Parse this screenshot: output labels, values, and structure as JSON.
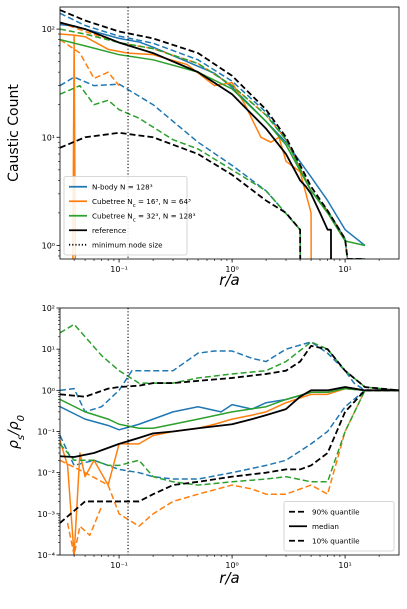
{
  "colors": {
    "nbody": "#1f77b4",
    "cube16": "#ff7f0e",
    "cube32": "#2ca02c",
    "reference": "#000000"
  },
  "chart_data": [
    {
      "type": "line",
      "xscale": "log",
      "yscale": "log",
      "xlim": [
        0.03,
        30
      ],
      "ylim": [
        0.75,
        160
      ],
      "xlabel": "r/a",
      "ylabel": "Caustic Count",
      "xticks": [
        {
          "v": 0.1,
          "label": "10⁻¹"
        },
        {
          "v": 1,
          "label": "10⁰"
        },
        {
          "v": 10,
          "label": "10¹"
        }
      ],
      "yticks": [
        {
          "v": 1,
          "label": "10⁰"
        },
        {
          "v": 10,
          "label": "10¹"
        },
        {
          "v": 100,
          "label": "10²"
        }
      ],
      "vline": {
        "x": 0.12,
        "style": "dotted"
      },
      "legend": {
        "position": "lower-left",
        "entries": [
          {
            "label": "N-body N = 128³",
            "color": "nbody",
            "style": "solid"
          },
          {
            "label": "Cubetree N_c = 16³, N = 64³",
            "color": "cube16",
            "style": "solid"
          },
          {
            "label": "Cubetree N_c = 32³, N = 128³",
            "color": "cube32",
            "style": "solid"
          },
          {
            "label": "reference",
            "color": "reference",
            "style": "solid"
          },
          {
            "label": "minimum node size",
            "color": "reference",
            "style": "dotted"
          }
        ]
      },
      "series": [
        {
          "color": "nbody",
          "style": "dashed",
          "x": [
            0.03,
            0.05,
            0.1,
            0.2,
            0.5,
            1,
            2,
            3,
            5,
            7,
            10,
            10.5,
            15
          ],
          "y": [
            140,
            108,
            86,
            74,
            52,
            33,
            17,
            9.5,
            3.2,
            2.1,
            1.15,
            0.75,
            0.75
          ]
        },
        {
          "color": "nbody",
          "style": "solid",
          "x": [
            0.03,
            0.04,
            0.06,
            0.1,
            0.15,
            0.2,
            0.4,
            0.7,
            1,
            2,
            3,
            5,
            7,
            10,
            15
          ],
          "y": [
            110,
            107,
            95,
            82,
            76,
            68,
            50,
            39,
            29,
            14,
            9,
            4.3,
            2.6,
            1.4,
            1
          ]
        },
        {
          "color": "nbody",
          "style": "dashed",
          "x": [
            0.03,
            0.04,
            0.06,
            0.1,
            0.2,
            0.5,
            1,
            2,
            4,
            4.01
          ],
          "y": [
            30,
            36,
            30,
            31,
            20,
            9,
            5.5,
            3.2,
            1.4,
            0.75
          ]
        },
        {
          "color": "cube16",
          "style": "dashed",
          "x": [
            0.03,
            0.05,
            0.1,
            0.2,
            0.5,
            1,
            2,
            3,
            5,
            7,
            10,
            10.5,
            15
          ],
          "y": [
            115,
            95,
            75,
            66,
            48,
            30,
            16,
            9.5,
            3.2,
            2.1,
            1.15,
            0.75,
            0.75
          ]
        },
        {
          "color": "cube16",
          "style": "solid",
          "x": [
            0.03,
            0.04,
            0.05,
            0.08,
            0.12,
            0.2,
            0.4,
            0.7,
            1,
            1.3,
            1.8,
            2.2,
            2.6,
            3,
            4,
            5,
            5.01
          ],
          "y": [
            90,
            88,
            85,
            65,
            60,
            58,
            47,
            30,
            32,
            20,
            10,
            9,
            10,
            6,
            4.8,
            2,
            0.75
          ]
        },
        {
          "color": "cube16",
          "style": "solid",
          "x": [
            0.039,
            0.04,
            0.041
          ],
          "y": [
            0.75,
            88,
            0.75
          ]
        },
        {
          "color": "cube16",
          "style": "dashed",
          "x": [
            0.03,
            0.045,
            0.06,
            0.08,
            0.1
          ],
          "y": [
            80,
            60,
            35,
            40,
            30
          ]
        },
        {
          "color": "cube32",
          "style": "dashed",
          "x": [
            0.03,
            0.05,
            0.1,
            0.2,
            0.5,
            1,
            2,
            3,
            5,
            7,
            10,
            10.5,
            15
          ],
          "y": [
            100,
            90,
            75,
            66,
            48,
            30,
            16,
            9.5,
            3.2,
            2.1,
            1.15,
            0.75,
            0.75
          ]
        },
        {
          "color": "cube32",
          "style": "solid",
          "x": [
            0.03,
            0.05,
            0.1,
            0.2,
            0.5,
            1,
            2,
            3,
            5,
            7,
            10,
            15
          ],
          "y": [
            80,
            70,
            58,
            52,
            40,
            28,
            14,
            8.5,
            3.2,
            2,
            1.1,
            1
          ]
        },
        {
          "color": "cube32",
          "style": "dashed",
          "x": [
            0.03,
            0.045,
            0.06,
            0.08,
            0.1,
            0.15,
            0.3,
            0.5,
            1,
            2,
            4,
            4.01
          ],
          "y": [
            25,
            30,
            20,
            22,
            18,
            15,
            9.5,
            7.8,
            5,
            3.2,
            1.4,
            0.75
          ]
        },
        {
          "color": "reference",
          "style": "dashed",
          "x": [
            0.03,
            0.05,
            0.1,
            0.2,
            0.5,
            1,
            2,
            3,
            5,
            7,
            10,
            10.5,
            15
          ],
          "y": [
            150,
            120,
            95,
            82,
            60,
            37,
            18,
            10,
            3.5,
            2.1,
            1.15,
            0.75,
            0.75
          ]
        },
        {
          "color": "reference",
          "style": "solid",
          "x": [
            0.03,
            0.05,
            0.1,
            0.2,
            0.5,
            1,
            2,
            3,
            4,
            4.5,
            5,
            6,
            7,
            7.5,
            7.51
          ],
          "y": [
            115,
            100,
            75,
            60,
            40,
            25,
            12,
            7,
            4,
            3.5,
            3,
            2,
            1.4,
            1.4,
            0.75
          ]
        },
        {
          "color": "reference",
          "style": "dashed",
          "x": [
            0.03,
            0.05,
            0.1,
            0.2,
            0.5,
            1,
            2,
            3,
            4,
            4.01
          ],
          "y": [
            8,
            10,
            11,
            10,
            7,
            4.5,
            2.6,
            2,
            1.4,
            0.75
          ]
        }
      ]
    },
    {
      "type": "line",
      "xscale": "log",
      "yscale": "log",
      "xlim": [
        0.03,
        30
      ],
      "ylim": [
        0.0001,
        100
      ],
      "xlabel": "r/a",
      "ylabel": "ρ_s/ρ_0",
      "xticks": [
        {
          "v": 0.1,
          "label": "10⁻¹"
        },
        {
          "v": 1,
          "label": "10⁰"
        },
        {
          "v": 10,
          "label": "10¹"
        }
      ],
      "yticks": [
        {
          "v": 0.0001,
          "label": "10⁻⁴"
        },
        {
          "v": 0.001,
          "label": "10⁻³"
        },
        {
          "v": 0.01,
          "label": "10⁻²"
        },
        {
          "v": 0.1,
          "label": "10⁻¹"
        },
        {
          "v": 1,
          "label": "10⁰"
        },
        {
          "v": 10,
          "label": "10¹"
        },
        {
          "v": 100,
          "label": "10²"
        }
      ],
      "vline": {
        "x": 0.12,
        "style": "dotted"
      },
      "legend": {
        "position": "lower-right",
        "entries": [
          {
            "label": "90% quantile",
            "color": "reference",
            "style": "dashed"
          },
          {
            "label": "median",
            "color": "reference",
            "style": "solid"
          },
          {
            "label": "10% quantile",
            "color": "reference",
            "style": "dashed"
          }
        ]
      },
      "series": [
        {
          "color": "nbody",
          "style": "dashed",
          "x": [
            0.03,
            0.04,
            0.05,
            0.07,
            0.1,
            0.13,
            0.2,
            0.3,
            0.5,
            0.7,
            1,
            1.5,
            2,
            3,
            5,
            7,
            10,
            12,
            15,
            20,
            30
          ],
          "y": [
            1,
            1.1,
            0.3,
            0.4,
            1,
            3,
            3,
            3,
            8,
            9,
            9,
            6,
            5,
            10,
            15,
            8,
            3,
            1.5,
            1,
            1,
            1
          ]
        },
        {
          "color": "nbody",
          "style": "solid",
          "x": [
            0.03,
            0.05,
            0.08,
            0.1,
            0.15,
            0.2,
            0.3,
            0.5,
            0.8,
            1,
            1.5,
            2,
            3,
            5,
            7,
            10,
            15,
            30
          ],
          "y": [
            0.4,
            0.2,
            0.14,
            0.11,
            0.15,
            0.2,
            0.3,
            0.4,
            0.3,
            0.45,
            0.35,
            0.5,
            0.6,
            0.9,
            0.9,
            1.1,
            1,
            1
          ]
        },
        {
          "color": "nbody",
          "style": "dashed",
          "x": [
            0.03,
            0.04,
            0.06,
            0.1,
            0.15,
            0.2,
            0.3,
            0.5,
            1,
            2,
            3,
            5,
            7,
            10,
            15,
            30
          ],
          "y": [
            0.08,
            0.015,
            0.02,
            0.012,
            0.01,
            0.008,
            0.007,
            0.007,
            0.01,
            0.015,
            0.02,
            0.05,
            0.1,
            0.4,
            1,
            1
          ]
        },
        {
          "color": "cube16",
          "style": "dashed",
          "x": [
            0.03,
            0.05,
            0.08,
            0.1,
            0.15,
            0.2,
            0.3,
            0.5,
            1,
            1.5,
            2,
            3,
            5,
            7,
            10,
            15,
            30
          ],
          "y": [
            0.02,
            0.01,
            0.005,
            0.001,
            0.0005,
            0.001,
            0.002,
            0.003,
            0.005,
            0.004,
            0.003,
            0.003,
            0.005,
            0.003,
            0.1,
            1,
            1
          ]
        },
        {
          "color": "cube16",
          "style": "dashed",
          "x": [
            0.035,
            0.04,
            0.045,
            0.055,
            0.07
          ],
          "y": [
            0.0006,
            0.0001,
            0.0005,
            0.0003,
            0.0015
          ]
        },
        {
          "color": "cube16",
          "style": "solid",
          "x": [
            0.03,
            0.035,
            0.04,
            0.045,
            0.05,
            0.06,
            0.08,
            0.1,
            0.15,
            0.2,
            0.3,
            0.5,
            0.7,
            1,
            1.5,
            2,
            3,
            5,
            7,
            10,
            15,
            30
          ],
          "y": [
            0.06,
            0.015,
            0.0001,
            0.03,
            0.008,
            0.02,
            0.005,
            0.05,
            0.05,
            0.08,
            0.1,
            0.12,
            0.15,
            0.2,
            0.25,
            0.3,
            0.5,
            0.8,
            0.8,
            1.1,
            1,
            1
          ]
        },
        {
          "color": "cube32",
          "style": "dashed",
          "x": [
            0.03,
            0.04,
            0.05,
            0.07,
            0.1,
            0.15,
            0.2,
            0.3,
            0.5,
            1,
            2,
            3,
            5,
            7,
            10,
            15,
            30
          ],
          "y": [
            25,
            40,
            20,
            7,
            3,
            1.5,
            1.5,
            1.5,
            2,
            2.5,
            3,
            5,
            15,
            10,
            3,
            1.2,
            1
          ]
        },
        {
          "color": "cube32",
          "style": "solid",
          "x": [
            0.03,
            0.05,
            0.08,
            0.1,
            0.15,
            0.2,
            0.3,
            0.5,
            1,
            2,
            3,
            5,
            7,
            10,
            15,
            30
          ],
          "y": [
            0.6,
            0.3,
            0.2,
            0.15,
            0.12,
            0.12,
            0.15,
            0.2,
            0.3,
            0.4,
            0.6,
            0.9,
            0.9,
            1.1,
            1,
            1
          ]
        },
        {
          "color": "cube32",
          "style": "dashed",
          "x": [
            0.03,
            0.04,
            0.06,
            0.08,
            0.1,
            0.15,
            0.2,
            0.3,
            0.5,
            1,
            2,
            3,
            5,
            7,
            10,
            15,
            30
          ],
          "y": [
            0.05,
            0.02,
            0.02,
            0.015,
            0.015,
            0.02,
            0.008,
            0.006,
            0.005,
            0.006,
            0.007,
            0.008,
            0.006,
            0.006,
            0.1,
            1,
            1
          ]
        },
        {
          "color": "reference",
          "style": "dashed",
          "x": [
            0.03,
            0.05,
            0.08,
            0.1,
            0.15,
            0.2,
            0.3,
            0.5,
            1,
            2,
            3,
            4,
            5,
            7,
            10,
            15,
            30
          ],
          "y": [
            0.8,
            0.7,
            1.1,
            1.2,
            1.3,
            1.5,
            1.5,
            1.7,
            2,
            2.5,
            3,
            5,
            12,
            10,
            3,
            1.2,
            1
          ]
        },
        {
          "color": "reference",
          "style": "solid",
          "x": [
            0.03,
            0.04,
            0.06,
            0.08,
            0.1,
            0.15,
            0.2,
            0.3,
            0.5,
            1,
            1.5,
            2,
            3,
            4,
            5,
            7,
            10,
            15,
            30
          ],
          "y": [
            0.025,
            0.024,
            0.03,
            0.04,
            0.05,
            0.07,
            0.09,
            0.1,
            0.12,
            0.15,
            0.2,
            0.25,
            0.35,
            0.7,
            1,
            1,
            1.2,
            1,
            1
          ]
        },
        {
          "color": "reference",
          "style": "dashed",
          "x": [
            0.03,
            0.05,
            0.08,
            0.1,
            0.15,
            0.2,
            0.3,
            0.5,
            1,
            2,
            3,
            4,
            5,
            7,
            10,
            15,
            30
          ],
          "y": [
            0.0006,
            0.002,
            0.002,
            0.002,
            0.002,
            0.003,
            0.005,
            0.006,
            0.008,
            0.01,
            0.012,
            0.012,
            0.015,
            0.03,
            0.3,
            1,
            1
          ]
        }
      ]
    }
  ]
}
